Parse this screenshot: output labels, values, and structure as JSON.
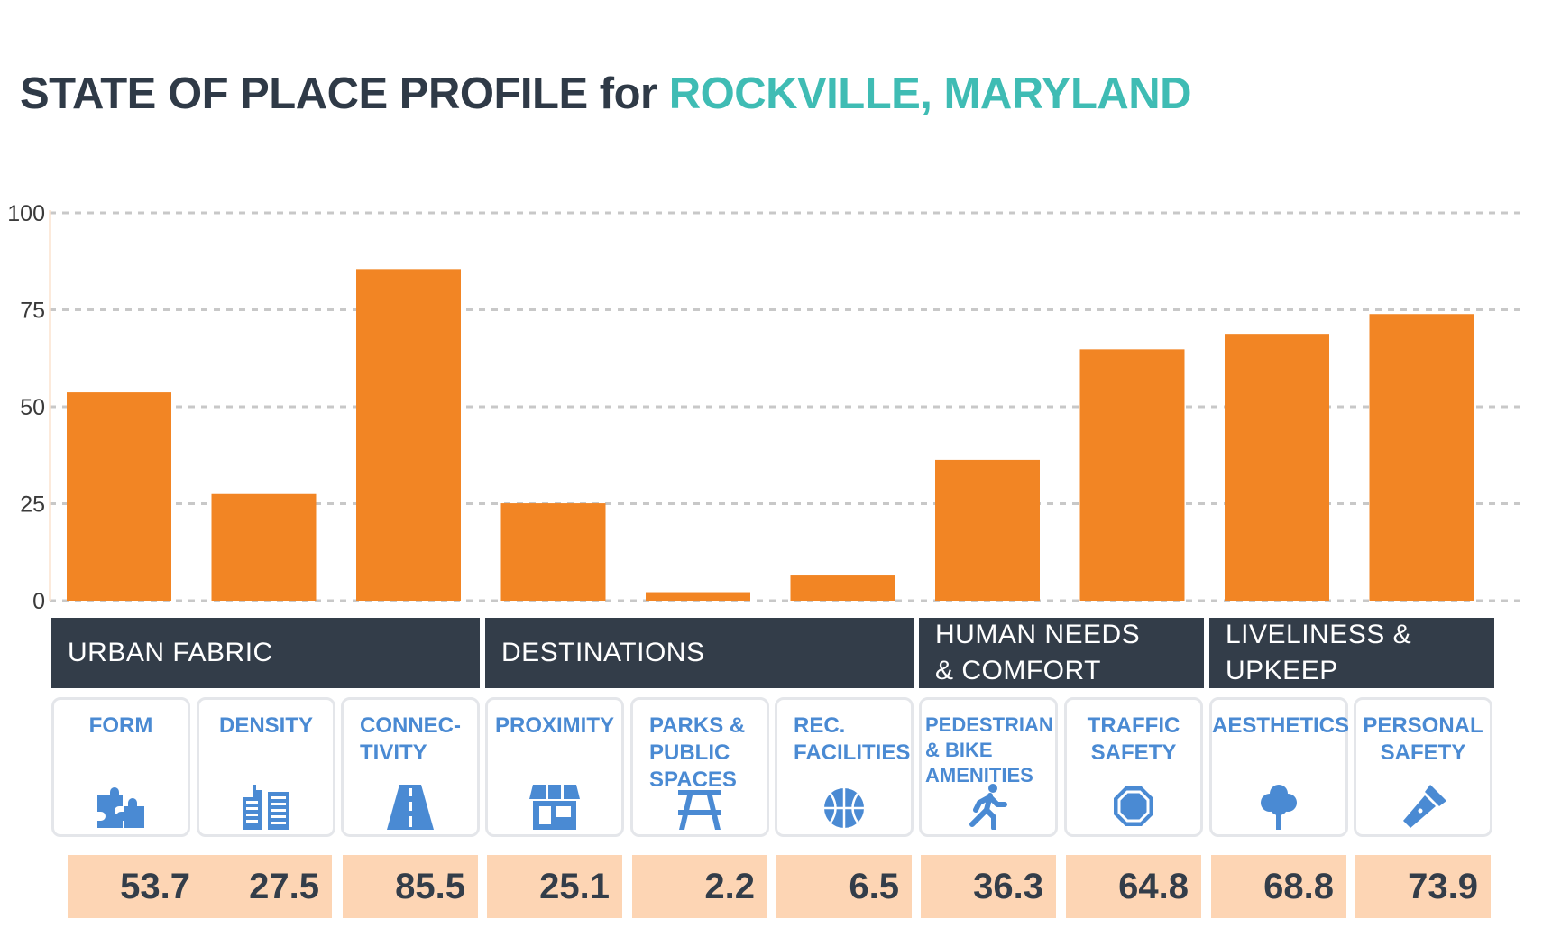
{
  "title": {
    "main": "STATE OF PLACE PROFILE for ",
    "place": "ROCKVILLE, MARYLAND"
  },
  "colors": {
    "bar": "#f28524",
    "title_dark": "#2f3a47",
    "title_accent": "#3fbcb4",
    "category_bg": "#333d49",
    "card_text": "#4a8ad3",
    "value_bg": "#fdd5b4"
  },
  "chart_data": {
    "type": "bar",
    "categories": [
      "FORM",
      "DENSITY",
      "CONNEC-TIVITY",
      "PROXIMITY",
      "PARKS & PUBLIC SPACES",
      "REC. FACILITIES",
      "PEDESTRIAN & BIKE AMENITIES",
      "TRAFFIC SAFETY",
      "AESTHETICS",
      "PERSONAL SAFETY"
    ],
    "values": [
      53.7,
      27.5,
      85.5,
      25.1,
      2.2,
      6.5,
      36.3,
      64.8,
      68.8,
      73.9
    ],
    "ylim": [
      0,
      100
    ],
    "yticks": [
      0,
      25,
      50,
      75,
      100
    ],
    "grid": true,
    "groups": [
      {
        "label": "URBAN FABRIC",
        "members": [
          "FORM",
          "DENSITY",
          "CONNEC-TIVITY"
        ]
      },
      {
        "label": "DESTINATIONS",
        "members": [
          "PROXIMITY",
          "PARKS & PUBLIC SPACES",
          "REC. FACILITIES"
        ]
      },
      {
        "label": "HUMAN NEEDS\n& COMFORT",
        "members": [
          "PEDESTRIAN & BIKE AMENITIES",
          "TRAFFIC SAFETY"
        ]
      },
      {
        "label": "LIVELINESS &\nUPKEEP",
        "members": [
          "AESTHETICS",
          "PERSONAL SAFETY"
        ]
      }
    ]
  },
  "cards": [
    {
      "label": "FORM",
      "icon": "puzzle-icon"
    },
    {
      "label": "DENSITY",
      "icon": "buildings-icon"
    },
    {
      "label": "CONNEC-\nTIVITY",
      "icon": "road-icon"
    },
    {
      "label": "PROXIMITY",
      "icon": "storefront-icon"
    },
    {
      "label": "PARKS &\nPUBLIC\nSPACES",
      "icon": "picnic-table-icon"
    },
    {
      "label": "REC.\nFACILITIES",
      "icon": "basketball-icon"
    },
    {
      "label": "PEDESTRIAN\n& BIKE\nAMENITIES",
      "icon": "pedestrian-icon"
    },
    {
      "label": "TRAFFIC\nSAFETY",
      "icon": "stop-sign-icon"
    },
    {
      "label": "AESTHETICS",
      "icon": "tree-icon"
    },
    {
      "label": "PERSONAL\nSAFETY",
      "icon": "flashlight-icon"
    }
  ],
  "values_display": [
    "53.7",
    "27.5",
    "85.5",
    "25.1",
    "2.2",
    "6.5",
    "36.3",
    "64.8",
    "68.8",
    "73.9"
  ]
}
